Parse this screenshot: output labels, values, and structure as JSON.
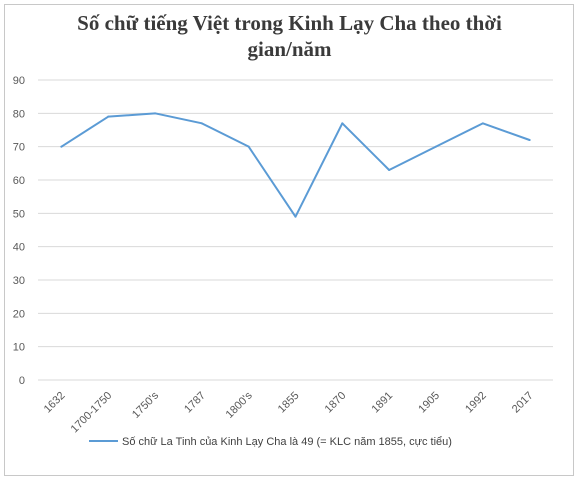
{
  "title_line1": "Số chữ tiếng Việt trong Kinh Lạy Cha theo thời",
  "title_line2": "gian/năm",
  "colors": {
    "series": "#5b9bd5",
    "grid": "#d9d9d9",
    "axis_text": "#595959"
  },
  "chart_data": {
    "type": "line",
    "title": "Số chữ tiếng Việt trong Kinh Lạy Cha theo thời gian/năm",
    "categories": [
      "1632",
      "1700-1750",
      "1750's",
      "1787",
      "1800's",
      "1855",
      "1870",
      "1891",
      "1905",
      "1992",
      "2017"
    ],
    "series": [
      {
        "name": "Số chữ La Tinh của Kinh Lạy Cha  là 49 (= KLC năm 1855, cực tiểu)",
        "values": [
          70,
          79,
          80,
          77,
          70,
          49,
          77,
          63,
          70,
          77,
          72
        ]
      }
    ],
    "ylim": [
      0,
      90
    ],
    "yticks": [
      0,
      10,
      20,
      30,
      40,
      50,
      60,
      70,
      80,
      90
    ],
    "grid": true,
    "legend": "bottom"
  }
}
